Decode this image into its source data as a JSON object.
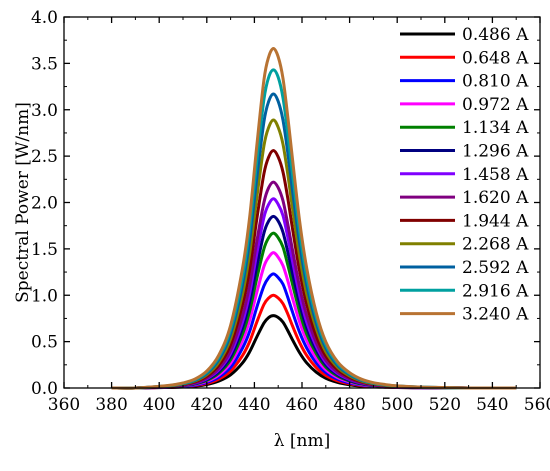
{
  "chart_data": {
    "type": "line",
    "title": "",
    "xlabel": "λ [nm]",
    "ylabel": "Spectral Power [W/nm]",
    "xlim": [
      360,
      560
    ],
    "ylim": [
      0.0,
      4.0
    ],
    "x_ticks": [
      360,
      380,
      400,
      420,
      440,
      460,
      480,
      500,
      520,
      540,
      560
    ],
    "x_tick_labels": [
      "360",
      "380",
      "400",
      "420",
      "440",
      "460",
      "480",
      "500",
      "520",
      "540",
      "560"
    ],
    "y_ticks": [
      0.0,
      0.5,
      1.0,
      1.5,
      2.0,
      2.5,
      3.0,
      3.5,
      4.0
    ],
    "y_tick_labels": [
      "0.0",
      "0.5",
      "1.0",
      "1.5",
      "2.0",
      "2.5",
      "3.0",
      "3.5",
      "4.0"
    ],
    "grid": false,
    "legend_position": "right",
    "x": [
      380,
      390,
      400,
      405,
      410,
      415,
      420,
      425,
      430,
      435,
      438,
      441,
      444,
      446,
      448,
      450,
      452,
      454,
      456,
      459,
      462,
      466,
      470,
      475,
      480,
      485,
      490,
      495,
      500,
      510,
      520,
      530,
      540,
      550
    ],
    "series": [
      {
        "name": "0.486 A",
        "color": "#000000",
        "values": [
          0.0,
          0.0,
          0.004,
          0.006,
          0.011,
          0.02,
          0.038,
          0.074,
          0.142,
          0.27,
          0.39,
          0.55,
          0.7,
          0.76,
          0.78,
          0.76,
          0.71,
          0.62,
          0.52,
          0.38,
          0.27,
          0.17,
          0.105,
          0.06,
          0.035,
          0.02,
          0.012,
          0.008,
          0.005,
          0.002,
          0.001,
          0.0,
          0.0,
          0.0
        ]
      },
      {
        "name": "0.648 A",
        "color": "#ff0000",
        "values": [
          0.0,
          0.0,
          0.005,
          0.008,
          0.014,
          0.026,
          0.049,
          0.095,
          0.182,
          0.35,
          0.5,
          0.71,
          0.9,
          0.97,
          1.0,
          0.97,
          0.91,
          0.8,
          0.67,
          0.49,
          0.35,
          0.22,
          0.135,
          0.077,
          0.045,
          0.026,
          0.016,
          0.01,
          0.006,
          0.003,
          0.001,
          0.0,
          0.0,
          0.0
        ]
      },
      {
        "name": "0.810 A",
        "color": "#0000ff",
        "values": [
          0.0,
          0.0,
          0.006,
          0.01,
          0.017,
          0.031,
          0.06,
          0.116,
          0.223,
          0.43,
          0.61,
          0.87,
          1.1,
          1.19,
          1.23,
          1.19,
          1.12,
          0.98,
          0.82,
          0.6,
          0.43,
          0.27,
          0.166,
          0.094,
          0.055,
          0.032,
          0.019,
          0.012,
          0.008,
          0.003,
          0.002,
          0.0,
          0.0,
          0.0
        ]
      },
      {
        "name": "0.972 A",
        "color": "#ff00ff",
        "values": [
          0.0,
          0.0,
          0.007,
          0.012,
          0.021,
          0.037,
          0.071,
          0.138,
          0.266,
          0.51,
          0.73,
          1.03,
          1.31,
          1.41,
          1.46,
          1.41,
          1.32,
          1.16,
          0.97,
          0.71,
          0.51,
          0.32,
          0.197,
          0.112,
          0.066,
          0.038,
          0.023,
          0.015,
          0.009,
          0.004,
          0.002,
          0.0,
          0.0,
          0.0
        ]
      },
      {
        "name": "1.134 A",
        "color": "#008000",
        "values": [
          0.0,
          0.0,
          0.008,
          0.014,
          0.024,
          0.043,
          0.082,
          0.159,
          0.304,
          0.58,
          0.83,
          1.18,
          1.5,
          1.62,
          1.67,
          1.62,
          1.52,
          1.33,
          1.12,
          0.82,
          0.58,
          0.37,
          0.226,
          0.128,
          0.075,
          0.043,
          0.026,
          0.017,
          0.011,
          0.005,
          0.002,
          0.0,
          0.0,
          0.0
        ]
      },
      {
        "name": "1.296 A",
        "color": "#000080",
        "values": [
          0.0,
          0.0,
          0.009,
          0.015,
          0.027,
          0.048,
          0.091,
          0.176,
          0.338,
          0.65,
          0.93,
          1.31,
          1.67,
          1.8,
          1.85,
          1.8,
          1.68,
          1.47,
          1.24,
          0.91,
          0.65,
          0.41,
          0.25,
          0.142,
          0.083,
          0.048,
          0.029,
          0.019,
          0.012,
          0.005,
          0.002,
          0.0,
          0.0,
          0.0
        ]
      },
      {
        "name": "1.458 A",
        "color": "#8000ff",
        "values": [
          0.0,
          0.0,
          0.01,
          0.017,
          0.029,
          0.052,
          0.1,
          0.194,
          0.373,
          0.71,
          1.02,
          1.45,
          1.84,
          1.98,
          2.04,
          1.98,
          1.86,
          1.63,
          1.37,
          1.0,
          0.71,
          0.45,
          0.276,
          0.156,
          0.092,
          0.053,
          0.032,
          0.021,
          0.013,
          0.006,
          0.003,
          0.0,
          0.0,
          0.0
        ]
      },
      {
        "name": "1.620 A",
        "color": "#800080",
        "values": [
          0.0,
          0.0,
          0.011,
          0.018,
          0.032,
          0.057,
          0.109,
          0.211,
          0.406,
          0.78,
          1.11,
          1.58,
          2.0,
          2.16,
          2.22,
          2.16,
          2.02,
          1.77,
          1.49,
          1.09,
          0.78,
          0.49,
          0.3,
          0.17,
          0.1,
          0.058,
          0.035,
          0.022,
          0.014,
          0.006,
          0.003,
          0.0,
          0.0,
          0.0
        ]
      },
      {
        "name": "1.944 A",
        "color": "#800000",
        "values": [
          0.0,
          0.0,
          0.012,
          0.021,
          0.037,
          0.066,
          0.126,
          0.244,
          0.468,
          0.9,
          1.28,
          1.82,
          2.31,
          2.49,
          2.56,
          2.49,
          2.33,
          2.05,
          1.72,
          1.26,
          0.9,
          0.56,
          0.346,
          0.196,
          0.115,
          0.067,
          0.04,
          0.026,
          0.016,
          0.007,
          0.003,
          0.0,
          0.0,
          0.0
        ]
      },
      {
        "name": "2.268 A",
        "color": "#808000",
        "values": [
          0.0,
          0.0,
          0.014,
          0.024,
          0.042,
          0.075,
          0.143,
          0.276,
          0.53,
          1.01,
          1.45,
          2.05,
          2.61,
          2.81,
          2.89,
          2.81,
          2.63,
          2.31,
          1.94,
          1.42,
          1.01,
          0.64,
          0.39,
          0.221,
          0.13,
          0.075,
          0.045,
          0.029,
          0.018,
          0.008,
          0.004,
          0.0,
          0.0,
          0.0
        ]
      },
      {
        "name": "2.592 A",
        "color": "#0060a0",
        "values": [
          0.0,
          0.0,
          0.016,
          0.027,
          0.046,
          0.082,
          0.157,
          0.304,
          0.583,
          1.11,
          1.59,
          2.26,
          2.87,
          3.09,
          3.17,
          3.09,
          2.89,
          2.54,
          2.13,
          1.56,
          1.11,
          0.7,
          0.43,
          0.243,
          0.143,
          0.082,
          0.05,
          0.032,
          0.02,
          0.009,
          0.004,
          0.0,
          0.0,
          0.0
        ]
      },
      {
        "name": "2.916 A",
        "color": "#00a0a0",
        "values": [
          0.0,
          0.0,
          0.017,
          0.029,
          0.05,
          0.089,
          0.17,
          0.33,
          0.632,
          1.2,
          1.73,
          2.45,
          3.11,
          3.35,
          3.43,
          3.35,
          3.13,
          2.75,
          2.31,
          1.69,
          1.2,
          0.76,
          0.466,
          0.263,
          0.155,
          0.089,
          0.054,
          0.034,
          0.021,
          0.009,
          0.004,
          0.0,
          0.0,
          0.0
        ]
      },
      {
        "name": "3.240 A",
        "color": "#b87333",
        "values": [
          0.0,
          0.0,
          0.018,
          0.031,
          0.054,
          0.096,
          0.182,
          0.352,
          0.675,
          1.29,
          1.84,
          2.61,
          3.32,
          3.57,
          3.66,
          3.57,
          3.34,
          2.93,
          2.47,
          1.8,
          1.29,
          0.81,
          0.498,
          0.281,
          0.165,
          0.095,
          0.057,
          0.037,
          0.023,
          0.01,
          0.005,
          0.0,
          0.0,
          0.0
        ]
      }
    ]
  }
}
